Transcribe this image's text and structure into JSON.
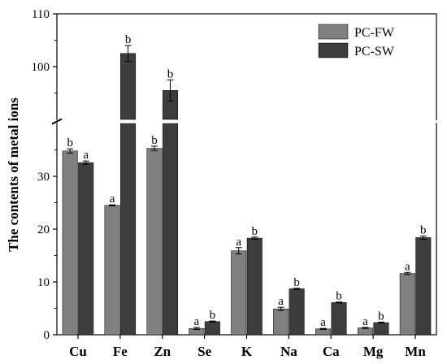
{
  "chart_data": {
    "type": "bar",
    "ylabel": "The contents of metal ions",
    "xlabel": "",
    "categories": [
      "Cu",
      "Fe",
      "Zn",
      "Se",
      "K",
      "Na",
      "Ca",
      "Mg",
      "Mn"
    ],
    "axis_break": {
      "lower_range": [
        0,
        40
      ],
      "upper_range": [
        90,
        110
      ]
    },
    "lower_ticks": [
      "0",
      "10",
      "20",
      "30"
    ],
    "upper_ticks": [
      "100",
      "110"
    ],
    "legend_position": "top-right",
    "series": [
      {
        "name": "PC-FW",
        "color": "#808080",
        "values": [
          34.8,
          24.5,
          35.3,
          1.2,
          15.9,
          4.9,
          1.1,
          1.3,
          11.6
        ],
        "errors": [
          0.4,
          0.1,
          0.4,
          0.2,
          0.6,
          0.3,
          0.1,
          0.1,
          0.2
        ],
        "labels": [
          "b",
          "a",
          "b",
          "a",
          "a",
          "a",
          "a",
          "a",
          "a"
        ]
      },
      {
        "name": "PC-SW",
        "color": "#3d3d3d",
        "values": [
          32.6,
          102.5,
          95.5,
          2.5,
          18.3,
          8.7,
          6.1,
          2.3,
          18.4
        ],
        "errors": [
          0.3,
          1.5,
          2.0,
          0.1,
          0.2,
          0.1,
          0.1,
          0.1,
          0.3
        ],
        "labels": [
          "a",
          "b",
          "b",
          "b",
          "b",
          "b",
          "b",
          "b",
          "b"
        ]
      }
    ]
  }
}
